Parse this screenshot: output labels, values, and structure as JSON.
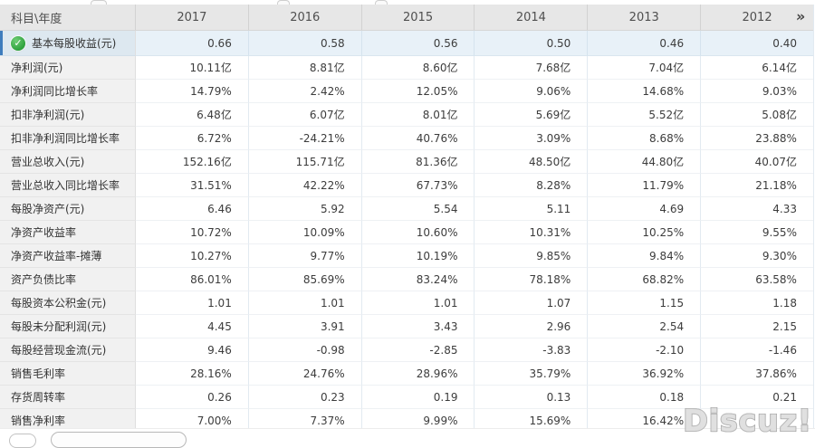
{
  "header": {
    "corner": "科目\\年度",
    "years": [
      "2017",
      "2016",
      "2015",
      "2014",
      "2013",
      "2012"
    ],
    "more_icon": "»"
  },
  "icons": {
    "check_icon": "✓"
  },
  "rows": [
    {
      "label": "基本每股收益(元)",
      "selected": true,
      "has_check": true,
      "values": [
        "0.66",
        "0.58",
        "0.56",
        "0.50",
        "0.46",
        "0.40"
      ]
    },
    {
      "label": "净利润(元)",
      "values": [
        "10.11亿",
        "8.81亿",
        "8.60亿",
        "7.68亿",
        "7.04亿",
        "6.14亿"
      ]
    },
    {
      "label": "净利润同比增长率",
      "values": [
        "14.79%",
        "2.42%",
        "12.05%",
        "9.06%",
        "14.68%",
        "9.03%"
      ]
    },
    {
      "label": "扣非净利润(元)",
      "values": [
        "6.48亿",
        "6.07亿",
        "8.01亿",
        "5.69亿",
        "5.52亿",
        "5.08亿"
      ]
    },
    {
      "label": "扣非净利润同比增长率",
      "values": [
        "6.72%",
        "-24.21%",
        "40.76%",
        "3.09%",
        "8.68%",
        "23.88%"
      ]
    },
    {
      "label": "营业总收入(元)",
      "values": [
        "152.16亿",
        "115.71亿",
        "81.36亿",
        "48.50亿",
        "44.80亿",
        "40.07亿"
      ]
    },
    {
      "label": "营业总收入同比增长率",
      "values": [
        "31.51%",
        "42.22%",
        "67.73%",
        "8.28%",
        "11.79%",
        "21.18%"
      ]
    },
    {
      "label": "每股净资产(元)",
      "values": [
        "6.46",
        "5.92",
        "5.54",
        "5.11",
        "4.69",
        "4.33"
      ]
    },
    {
      "label": "净资产收益率",
      "values": [
        "10.72%",
        "10.09%",
        "10.60%",
        "10.31%",
        "10.25%",
        "9.55%"
      ]
    },
    {
      "label": "净资产收益率-摊薄",
      "values": [
        "10.27%",
        "9.77%",
        "10.19%",
        "9.85%",
        "9.84%",
        "9.30%"
      ]
    },
    {
      "label": "资产负债比率",
      "values": [
        "86.01%",
        "85.69%",
        "83.24%",
        "78.18%",
        "68.82%",
        "63.58%"
      ]
    },
    {
      "label": "每股资本公积金(元)",
      "values": [
        "1.01",
        "1.01",
        "1.01",
        "1.07",
        "1.15",
        "1.18"
      ]
    },
    {
      "label": "每股未分配利润(元)",
      "values": [
        "4.45",
        "3.91",
        "3.43",
        "2.96",
        "2.54",
        "2.15"
      ]
    },
    {
      "label": "每股经营现金流(元)",
      "values": [
        "9.46",
        "-0.98",
        "-2.85",
        "-3.83",
        "-2.10",
        "-1.46"
      ]
    },
    {
      "label": "销售毛利率",
      "values": [
        "28.16%",
        "24.76%",
        "28.96%",
        "35.79%",
        "36.92%",
        "37.86%"
      ]
    },
    {
      "label": "存货周转率",
      "values": [
        "0.26",
        "0.23",
        "0.19",
        "0.13",
        "0.18",
        "0.21"
      ]
    },
    {
      "label": "销售净利率",
      "values": [
        "7.00%",
        "7.37%",
        "9.99%",
        "15.69%",
        "16.42%",
        ""
      ]
    }
  ],
  "watermark": "Discuz!",
  "colors": {
    "selected_row_bg": "#e8f1f8",
    "selected_bar": "#3e7dbd",
    "header_bg": "#e7e7e7",
    "label_col_bg": "#f1f1f1",
    "check_green": "#2fa23e"
  }
}
